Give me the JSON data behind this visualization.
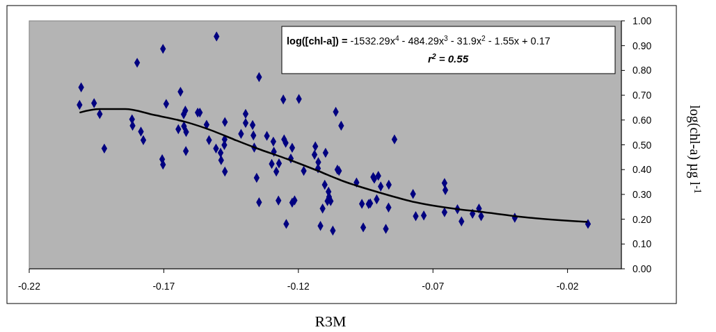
{
  "chart_data": {
    "type": "scatter",
    "xlabel": "R3M",
    "ylabel": "log(chl-a) µg l$^{-1}$",
    "annotations": [
      "log([chl-a]) = -1532.29x$^{4}$ - 484.29x$^{3}$ - 31.9x$^{2}$ - 1.55x + 0.17",
      "r$^{2}$ = 0.55"
    ],
    "xlim": [
      -0.22,
      0
    ],
    "xticks": [
      -0.22,
      -0.17,
      -0.12,
      -0.07,
      -0.02
    ],
    "ylim": [
      0,
      1
    ],
    "yticks": [
      {
        "value": 0,
        "label": "0.00"
      },
      {
        "value": 0.1,
        "label": "0.10"
      },
      {
        "value": 0.2,
        "label": "0.20"
      },
      {
        "value": 0.3,
        "label": "0.30"
      },
      {
        "value": 0.4,
        "label": "0.40"
      },
      {
        "value": 0.5,
        "label": "0.50"
      },
      {
        "value": 0.6,
        "label": "0.60"
      },
      {
        "value": 0.7,
        "label": "0.70"
      },
      {
        "value": 0.8,
        "label": "0.80"
      },
      {
        "value": 0.9,
        "label": "0.90"
      },
      {
        "value": 1,
        "label": "1.00"
      }
    ],
    "grid": false,
    "marker": "diamond",
    "series": [
      {
        "color": "#000080",
        "x": [
          -0.2007,
          -0.2013,
          -0.1959,
          -0.1938,
          -0.1921,
          -0.1799,
          -0.1818,
          -0.1816,
          -0.1785,
          -0.1776,
          -0.1703,
          -0.1691,
          -0.1706,
          -0.1703,
          -0.1638,
          -0.162,
          -0.1626,
          -0.1646,
          -0.1625,
          -0.1617,
          -0.1618,
          -0.1574,
          -0.1566,
          -0.1541,
          -0.1532,
          -0.1504,
          -0.1506,
          -0.1489,
          -0.1487,
          -0.1473,
          -0.1474,
          -0.1475,
          -0.1473,
          -0.1413,
          -0.1396,
          -0.1396,
          -0.137,
          -0.1367,
          -0.1364,
          -0.1355,
          -0.1346,
          -0.1346,
          -0.1317,
          -0.1293,
          -0.1291,
          -0.1299,
          -0.1272,
          -0.1282,
          -0.1274,
          -0.1256,
          -0.1253,
          -0.1247,
          -0.1223,
          -0.1228,
          -0.1245,
          -0.1223,
          -0.1214,
          -0.1198,
          -0.118,
          -0.1137,
          -0.114,
          -0.1126,
          -0.1127,
          -0.1099,
          -0.1102,
          -0.1088,
          -0.1086,
          -0.1092,
          -0.108,
          -0.111,
          -0.1118,
          -0.1072,
          -0.1061,
          -0.1041,
          -0.1055,
          -0.1049,
          -0.0984,
          -0.0964,
          -0.0959,
          -0.0939,
          -0.0933,
          -0.0922,
          -0.0918,
          -0.0903,
          -0.0894,
          -0.0909,
          -0.0864,
          -0.0865,
          -0.0875,
          -0.0843,
          -0.0774,
          -0.0764,
          -0.0734,
          -0.0657,
          -0.0654,
          -0.0657,
          -0.0609,
          -0.0594,
          -0.0553,
          -0.0529,
          -0.0521,
          -0.0396,
          -0.0124
        ],
        "values": [
          0.732,
          0.661,
          0.668,
          0.624,
          0.485,
          0.831,
          0.603,
          0.577,
          0.553,
          0.519,
          0.887,
          0.665,
          0.442,
          0.42,
          0.714,
          0.638,
          0.623,
          0.563,
          0.575,
          0.552,
          0.475,
          0.63,
          0.63,
          0.581,
          0.519,
          0.937,
          0.485,
          0.468,
          0.438,
          0.592,
          0.522,
          0.499,
          0.392,
          0.544,
          0.625,
          0.588,
          0.58,
          0.538,
          0.489,
          0.367,
          0.773,
          0.268,
          0.536,
          0.513,
          0.472,
          0.423,
          0.425,
          0.392,
          0.275,
          0.683,
          0.522,
          0.508,
          0.488,
          0.445,
          0.181,
          0.267,
          0.276,
          0.685,
          0.395,
          0.494,
          0.46,
          0.43,
          0.405,
          0.468,
          0.339,
          0.311,
          0.29,
          0.273,
          0.273,
          0.243,
          0.173,
          0.154,
          0.633,
          0.577,
          0.4,
          0.395,
          0.348,
          0.262,
          0.167,
          0.261,
          0.264,
          0.37,
          0.363,
          0.375,
          0.332,
          0.28,
          0.339,
          0.247,
          0.161,
          0.522,
          0.302,
          0.212,
          0.215,
          0.346,
          0.317,
          0.228,
          0.24,
          0.191,
          0.222,
          0.243,
          0.212,
          0.206,
          0.181
        ]
      },
      {
        "type": "line",
        "color": "#000000",
        "marker": "none",
        "x": [
          -0.2013,
          -0.1938,
          -0.1843,
          -0.1739,
          -0.1618,
          -0.1515,
          -0.1429,
          -0.1355,
          -0.1239,
          -0.1127,
          -0.1032,
          -0.0894,
          -0.0764,
          -0.0605,
          -0.0532,
          -0.0359,
          -0.0126
        ],
        "values": [
          0.63,
          0.644,
          0.644,
          0.621,
          0.592,
          0.555,
          0.517,
          0.486,
          0.442,
          0.395,
          0.353,
          0.306,
          0.268,
          0.24,
          0.231,
          0.208,
          0.189
        ]
      }
    ]
  }
}
